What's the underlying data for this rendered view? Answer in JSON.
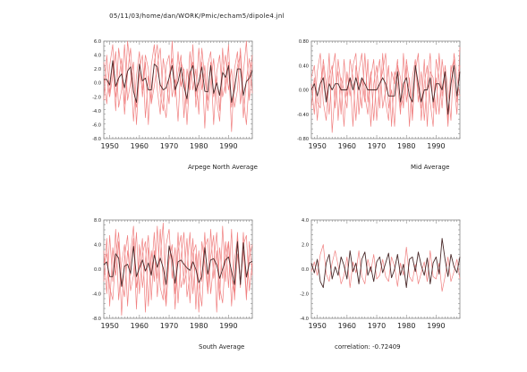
{
  "page": {
    "title": "05/11/03/home/dan/WORK/Pmic/echam5/dipole4.jnl"
  },
  "panels": {
    "north": {
      "label": "Arpege North Average"
    },
    "mid": {
      "label": "Mid Average"
    },
    "south": {
      "label": "South Average"
    },
    "corr": {
      "label": "correlation: -0.72409"
    }
  },
  "colors": {
    "model_lines": "#f08080",
    "mean_line": "#4a2a2a",
    "axis": "#888888"
  },
  "chart_data": [
    {
      "id": "north",
      "type": "line",
      "title": "Arpege North Average",
      "xlim": [
        1948,
        1998
      ],
      "ylim": [
        -8.0,
        6.0
      ],
      "xticks": [
        "1950",
        "1960",
        "1970",
        "1980",
        "1990"
      ],
      "yticks": [
        "6.0",
        "4.0",
        "2.0",
        "0.0",
        "-2.0",
        "-4.0",
        "-6.0",
        "-8.0"
      ],
      "x": [
        1948,
        1949,
        1950,
        1951,
        1952,
        1953,
        1954,
        1955,
        1956,
        1957,
        1958,
        1959,
        1960,
        1961,
        1962,
        1963,
        1964,
        1965,
        1966,
        1967,
        1968,
        1969,
        1970,
        1971,
        1972,
        1973,
        1974,
        1975,
        1976,
        1977,
        1978,
        1979,
        1980,
        1981,
        1982,
        1983,
        1984,
        1985,
        1986,
        1987,
        1988,
        1989,
        1990,
        1991,
        1992,
        1993,
        1994,
        1995,
        1996,
        1997,
        1998
      ],
      "series": [
        {
          "style": "model",
          "values": [
            -2.5,
            4.0,
            -1.5,
            3.0,
            -4.0,
            5.0,
            1.5,
            -3.0,
            6.0,
            2.0,
            -5.5,
            1.0,
            4.5,
            -2.0,
            3.0,
            -6.0,
            2.5,
            5.5,
            -1.0,
            -4.5,
            3.5,
            0.5,
            -3.0,
            6.0,
            -2.0,
            1.5,
            4.0,
            -5.0,
            2.0,
            -1.0,
            5.5,
            -3.5,
            0.0,
            3.0,
            -6.5,
            2.5,
            4.5,
            -2.0,
            1.0,
            -4.0,
            5.0,
            -1.5,
            3.0,
            -7.0,
            2.0,
            4.5,
            -3.0,
            1.5,
            6.0,
            -2.5,
            3.0
          ]
        },
        {
          "style": "model",
          "values": [
            1.0,
            -3.0,
            2.5,
            5.5,
            -2.0,
            0.5,
            3.5,
            -4.5,
            1.5,
            5.0,
            -1.0,
            -3.5,
            2.0,
            4.0,
            -5.0,
            1.0,
            -2.5,
            3.0,
            5.5,
            -1.5,
            -4.0,
            2.5,
            4.0,
            -2.0,
            0.5,
            -5.5,
            3.0,
            1.5,
            -3.0,
            4.5,
            -1.0,
            2.0,
            -4.5,
            5.0,
            0.5,
            -2.5,
            3.0,
            -6.0,
            1.5,
            4.0,
            -2.0,
            0.0,
            5.5,
            -3.5,
            -1.0,
            2.5,
            4.0,
            -5.0,
            0.5,
            3.5,
            -1.5
          ]
        },
        {
          "style": "model",
          "values": [
            3.0,
            0.5,
            -2.0,
            1.0,
            4.5,
            -3.5,
            -1.0,
            5.5,
            -2.5,
            0.0,
            3.0,
            -6.0,
            1.5,
            -1.0,
            4.0,
            2.0,
            -3.0,
            -0.5,
            2.5,
            5.0,
            -2.5,
            -5.0,
            1.0,
            3.5,
            -1.5,
            4.5,
            -0.5,
            2.0,
            -6.0,
            1.0,
            3.0,
            -2.0,
            5.0,
            -1.0,
            2.5,
            -4.0,
            0.0,
            3.5,
            -2.5,
            -5.5,
            1.5,
            4.0,
            -1.0,
            2.0,
            -3.5,
            -1.0,
            5.0,
            -2.0,
            -6.0,
            1.0,
            4.0
          ]
        },
        {
          "style": "mean",
          "values": [
            0.5,
            0.5,
            -0.3,
            3.2,
            -0.5,
            0.7,
            1.3,
            -0.7,
            1.7,
            2.3,
            -1.2,
            -2.8,
            2.7,
            0.3,
            0.7,
            -1.0,
            -1.0,
            2.7,
            2.3,
            -0.3,
            -1.0,
            -0.7,
            0.7,
            2.5,
            -1.0,
            0.2,
            2.2,
            -0.5,
            -2.3,
            1.5,
            2.5,
            -1.2,
            0.2,
            2.3,
            -1.2,
            -1.3,
            2.5,
            -1.5,
            0.0,
            -1.8,
            1.5,
            0.8,
            2.5,
            -2.8,
            -0.8,
            2.0,
            2.0,
            -1.8,
            0.2,
            0.7,
            1.8
          ]
        }
      ]
    },
    {
      "id": "mid",
      "type": "line",
      "title": "Mid Average",
      "xlim": [
        1948,
        1998
      ],
      "ylim": [
        -0.8,
        0.8
      ],
      "xticks": [
        "1950",
        "1960",
        "1970",
        "1980",
        "1990"
      ],
      "yticks": [
        "0.80",
        "0.40",
        "0.00",
        "-0.40",
        "-0.80"
      ],
      "x": [
        1948,
        1949,
        1950,
        1951,
        1952,
        1953,
        1954,
        1955,
        1956,
        1957,
        1958,
        1959,
        1960,
        1961,
        1962,
        1963,
        1964,
        1965,
        1966,
        1967,
        1968,
        1969,
        1970,
        1971,
        1972,
        1973,
        1974,
        1975,
        1976,
        1977,
        1978,
        1979,
        1980,
        1981,
        1982,
        1983,
        1984,
        1985,
        1986,
        1987,
        1988,
        1989,
        1990,
        1991,
        1992,
        1993,
        1994,
        1995,
        1996,
        1997,
        1998
      ],
      "series": [
        {
          "style": "model",
          "values": [
            -0.3,
            0.2,
            -0.5,
            0.1,
            0.4,
            -0.2,
            0.6,
            -0.7,
            0.0,
            0.3,
            -0.4,
            0.5,
            -0.1,
            0.2,
            -0.6,
            0.4,
            0.1,
            -0.3,
            0.6,
            -0.2,
            0.3,
            -0.5,
            0.2,
            0.5,
            -0.3,
            0.0,
            0.4,
            -0.6,
            0.3,
            0.1,
            -0.4,
            0.6,
            -0.2,
            0.2,
            -0.5,
            0.4,
            0.0,
            -0.3,
            0.5,
            -0.6,
            0.3,
            0.2,
            -0.4,
            0.6,
            -0.1,
            0.3,
            -0.5,
            0.4,
            0.1,
            -0.4,
            0.7
          ]
        },
        {
          "style": "model",
          "values": [
            0.1,
            -0.4,
            0.3,
            0.6,
            -0.2,
            -0.5,
            0.2,
            0.4,
            -0.3,
            0.5,
            0.1,
            -0.6,
            0.3,
            -0.1,
            0.4,
            0.6,
            -0.4,
            0.2,
            -0.2,
            0.5,
            -0.6,
            0.1,
            0.4,
            -0.3,
            0.6,
            -0.2,
            -0.5,
            0.3,
            0.1,
            0.5,
            -0.3,
            -0.1,
            0.4,
            -0.6,
            0.2,
            0.5,
            -0.2,
            0.3,
            -0.5,
            0.1,
            0.6,
            -0.3,
            0.2,
            -0.4,
            0.5,
            0.1,
            -0.6,
            0.3,
            0.5,
            -0.2,
            0.4
          ]
        },
        {
          "style": "model",
          "values": [
            0.2,
            0.4,
            -0.2,
            -0.3,
            0.5,
            0.1,
            -0.4,
            0.3,
            0.6,
            -0.5,
            0.2,
            0.0,
            -0.3,
            0.5,
            0.2,
            -0.5,
            0.3,
            0.6,
            -0.1,
            -0.4,
            0.2,
            0.5,
            -0.5,
            0.1,
            0.3,
            0.6,
            -0.3,
            0.0,
            -0.6,
            0.4,
            0.2,
            -0.3,
            0.5,
            0.1,
            -0.4,
            0.3,
            0.6,
            -0.5,
            0.1,
            0.4,
            -0.2,
            -0.6,
            0.5,
            0.2,
            -0.3,
            0.4,
            0.0,
            -0.5,
            0.6,
            0.2,
            -0.1
          ]
        },
        {
          "style": "mean",
          "values": [
            0.0,
            0.1,
            -0.1,
            0.1,
            0.2,
            -0.2,
            0.1,
            0.0,
            0.1,
            0.1,
            0.0,
            0.0,
            0.0,
            0.2,
            0.0,
            0.2,
            0.0,
            0.2,
            0.1,
            0.0,
            0.0,
            0.0,
            0.0,
            0.1,
            0.2,
            0.1,
            -0.1,
            -0.1,
            -0.1,
            0.3,
            -0.2,
            0.1,
            0.2,
            -0.1,
            -0.2,
            0.4,
            0.1,
            -0.2,
            0.0,
            0.0,
            0.2,
            -0.2,
            0.1,
            0.1,
            0.0,
            0.3,
            -0.4,
            0.1,
            0.4,
            -0.1,
            0.3
          ]
        }
      ]
    },
    {
      "id": "south",
      "type": "line",
      "title": "South Average",
      "xlim": [
        1948,
        1998
      ],
      "ylim": [
        -8.0,
        8.0
      ],
      "xticks": [
        "1950",
        "1960",
        "1970",
        "1980",
        "1990"
      ],
      "yticks": [
        "8.0",
        "4.0",
        "0.0",
        "-4.0",
        "-8.0"
      ],
      "x": [
        1948,
        1949,
        1950,
        1951,
        1952,
        1953,
        1954,
        1955,
        1956,
        1957,
        1958,
        1959,
        1960,
        1961,
        1962,
        1963,
        1964,
        1965,
        1966,
        1967,
        1968,
        1969,
        1970,
        1971,
        1972,
        1973,
        1974,
        1975,
        1976,
        1977,
        1978,
        1979,
        1980,
        1981,
        1982,
        1983,
        1984,
        1985,
        1986,
        1987,
        1988,
        1989,
        1990,
        1991,
        1992,
        1993,
        1994,
        1995,
        1996,
        1997,
        1998
      ],
      "series": [
        {
          "style": "model",
          "values": [
            3.0,
            -4.0,
            5.5,
            -2.0,
            6.5,
            -5.0,
            1.0,
            4.0,
            -6.0,
            2.5,
            7.0,
            -3.0,
            0.5,
            5.0,
            -7.0,
            3.5,
            -1.0,
            6.0,
            -4.5,
            2.0,
            7.5,
            -5.5,
            1.5,
            4.0,
            -6.5,
            3.0,
            5.5,
            -2.5,
            0.0,
            6.0,
            -4.0,
            2.5,
            -7.0,
            4.5,
            1.0,
            -3.5,
            6.5,
            -1.5,
            3.0,
            -5.0,
            7.0,
            -2.0,
            4.5,
            -6.0,
            1.5,
            5.0,
            -3.0,
            6.0,
            -4.5,
            2.0,
            4.0
          ]
        },
        {
          "style": "model",
          "values": [
            -2.0,
            5.0,
            -6.0,
            3.5,
            -1.0,
            4.5,
            -7.5,
            2.0,
            5.5,
            -3.5,
            -1.0,
            6.0,
            -4.0,
            2.5,
            4.5,
            -6.0,
            3.0,
            -2.0,
            7.0,
            -3.0,
            -5.0,
            4.0,
            6.5,
            -1.5,
            3.5,
            -5.5,
            2.0,
            6.0,
            -4.5,
            -1.0,
            5.0,
            -6.5,
            3.0,
            -2.0,
            6.0,
            -4.0,
            2.0,
            5.5,
            -7.0,
            3.5,
            -1.5,
            4.5,
            -3.0,
            6.5,
            -5.0,
            2.5,
            -2.0,
            4.0,
            5.5,
            -3.5,
            1.0
          ]
        },
        {
          "style": "model",
          "values": [
            1.0,
            2.5,
            -3.0,
            -5.0,
            2.0,
            6.0,
            -2.0,
            -4.5,
            3.0,
            -1.0,
            5.0,
            -6.5,
            4.0,
            -3.0,
            1.5,
            5.5,
            -5.0,
            3.0,
            -1.5,
            6.5,
            -2.0,
            -6.0,
            3.5,
            2.0,
            -4.0,
            6.0,
            -3.0,
            -1.0,
            5.0,
            -5.5,
            2.5,
            4.0,
            -2.5,
            -6.0,
            3.5,
            5.0,
            -4.0,
            1.0,
            6.0,
            -3.0,
            -5.5,
            2.0,
            4.5,
            -1.5,
            -4.0,
            6.0,
            -2.5,
            3.0,
            -5.0,
            4.5,
            -1.0
          ]
        },
        {
          "style": "mean",
          "values": [
            0.7,
            1.2,
            -1.2,
            -1.2,
            2.5,
            1.8,
            -2.8,
            0.5,
            0.8,
            -0.7,
            3.7,
            -1.2,
            0.2,
            1.5,
            -0.3,
            1.0,
            -1.0,
            2.3,
            0.3,
            1.8,
            0.2,
            -2.5,
            3.8,
            1.5,
            -2.3,
            1.2,
            1.5,
            0.8,
            0.2,
            -0.2,
            1.2,
            0.0,
            -2.2,
            -1.2,
            3.5,
            -0.8,
            1.5,
            1.7,
            0.7,
            -1.5,
            0.0,
            1.5,
            2.0,
            -0.3,
            -2.5,
            4.5,
            -2.5,
            4.3,
            -1.3,
            1.0,
            1.3
          ]
        }
      ]
    },
    {
      "id": "corr",
      "type": "line",
      "title": "correlation: -0.72409",
      "xlim": [
        1948,
        1998
      ],
      "ylim": [
        -4.0,
        4.0
      ],
      "xticks": [
        "1950",
        "1960",
        "1970",
        "1980",
        "1990"
      ],
      "yticks": [
        "4.0",
        "2.0",
        "0.0",
        "-2.0",
        "-4.0"
      ],
      "x": [
        1948,
        1949,
        1950,
        1951,
        1952,
        1953,
        1954,
        1955,
        1956,
        1957,
        1958,
        1959,
        1960,
        1961,
        1962,
        1963,
        1964,
        1965,
        1966,
        1967,
        1968,
        1969,
        1970,
        1971,
        1972,
        1973,
        1974,
        1975,
        1976,
        1977,
        1978,
        1979,
        1980,
        1981,
        1982,
        1983,
        1984,
        1985,
        1986,
        1987,
        1988,
        1989,
        1990,
        1991,
        1992,
        1993,
        1994,
        1995,
        1996,
        1997,
        1998
      ],
      "series": [
        {
          "style": "mean",
          "values": [
            0.5,
            -0.3,
            0.8,
            -1.0,
            -1.5,
            0.5,
            1.2,
            -0.8,
            0.2,
            -0.5,
            1.0,
            0.3,
            -0.8,
            1.5,
            -0.2,
            0.5,
            -1.2,
            0.8,
            1.4,
            -0.5,
            0.2,
            -1.0,
            0.6,
            1.0,
            -0.3,
            0.5,
            1.3,
            -0.7,
            0.0,
            1.2,
            -0.5,
            0.4,
            -1.5,
            0.8,
            1.0,
            -0.2,
            1.4,
            0.3,
            -0.5,
            0.9,
            -1.2,
            0.5,
            1.0,
            -0.4,
            2.5,
            0.8,
            -0.6,
            1.2,
            0.2,
            -0.3,
            1.0
          ]
        },
        {
          "style": "model",
          "values": [
            -0.2,
            0.6,
            -0.5,
            1.2,
            2.0,
            -0.4,
            -1.0,
            0.5,
            1.5,
            0.3,
            -1.2,
            -0.5,
            1.0,
            -1.5,
            0.6,
            -0.3,
            1.5,
            -0.6,
            -1.2,
            0.8,
            -0.2,
            1.2,
            -0.8,
            -0.5,
            0.8,
            -0.6,
            -1.0,
            1.0,
            0.2,
            -1.4,
            0.5,
            -0.5,
            1.8,
            -0.6,
            -1.0,
            0.4,
            -1.2,
            -0.3,
            0.6,
            -1.0,
            1.5,
            -0.6,
            -0.8,
            0.5,
            -1.8,
            -0.6,
            1.0,
            -1.0,
            -0.2,
            0.8,
            -0.8
          ]
        }
      ]
    }
  ]
}
